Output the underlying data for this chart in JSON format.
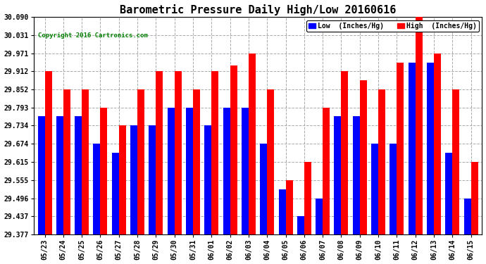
{
  "title": "Barometric Pressure Daily High/Low 20160616",
  "copyright": "Copyright 2016 Cartronics.com",
  "legend_low": "Low  (Inches/Hg)",
  "legend_high": "High  (Inches/Hg)",
  "dates": [
    "05/23",
    "05/24",
    "05/25",
    "05/26",
    "05/27",
    "05/28",
    "05/29",
    "05/30",
    "05/31",
    "06/01",
    "06/02",
    "06/03",
    "06/04",
    "06/05",
    "06/06",
    "06/07",
    "06/08",
    "06/09",
    "06/10",
    "06/11",
    "06/12",
    "06/13",
    "06/14",
    "06/15"
  ],
  "high": [
    29.912,
    29.852,
    29.853,
    29.793,
    29.734,
    29.853,
    29.912,
    29.912,
    29.852,
    29.912,
    29.93,
    29.971,
    29.853,
    29.555,
    29.615,
    29.793,
    29.912,
    29.882,
    29.852,
    29.941,
    30.09,
    29.971,
    29.852,
    29.615
  ],
  "low": [
    29.764,
    29.764,
    29.764,
    29.674,
    29.644,
    29.734,
    29.734,
    29.793,
    29.793,
    29.734,
    29.793,
    29.793,
    29.674,
    29.525,
    29.437,
    29.496,
    29.764,
    29.764,
    29.674,
    29.674,
    29.941,
    29.941,
    29.644,
    29.496
  ],
  "ylim_min": 29.377,
  "ylim_max": 30.09,
  "yticks": [
    29.377,
    29.437,
    29.496,
    29.555,
    29.615,
    29.674,
    29.734,
    29.793,
    29.852,
    29.912,
    29.971,
    30.031,
    30.09
  ],
  "color_low": "#0000FF",
  "color_high": "#FF0000",
  "background_color": "#FFFFFF",
  "bar_width": 0.38,
  "title_fontsize": 11,
  "tick_fontsize": 7,
  "grid_color": "#AAAAAA"
}
